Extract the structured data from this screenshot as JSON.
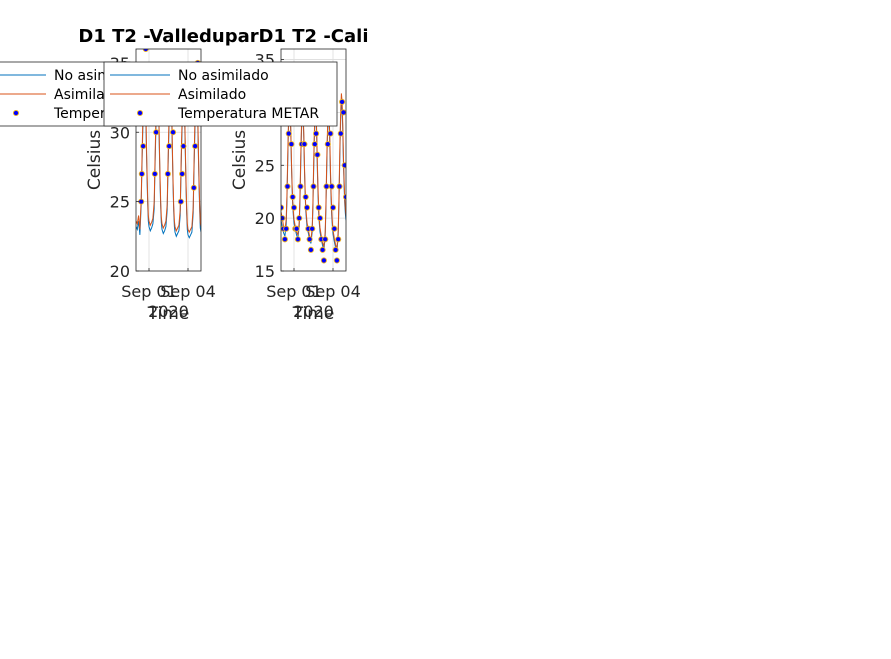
{
  "colors": {
    "no_asimilado": "#0072BD",
    "asimilado": "#D95319",
    "metar_face": "#0000FF",
    "metar_edge": "#EDB120",
    "grid": "#DCDCDC",
    "axis": "#262626"
  },
  "chart_data": [
    {
      "type": "line",
      "title": "D1 T2  -Valledupar",
      "xlabel": "Time",
      "ylabel": "Celsius",
      "date_label": "2020",
      "x_ticklabels": [
        "Sep 01",
        "Sep 04"
      ],
      "x_tick_days": [
        1,
        4
      ],
      "xlim_days": [
        0,
        5
      ],
      "ylim": [
        20,
        36
      ],
      "yticks": [
        20,
        25,
        30,
        35
      ],
      "grid": true,
      "legend": {
        "position": "top-left",
        "entries": [
          "No asimilado",
          "Asimilado",
          "Temperatura METAR"
        ]
      },
      "series": [
        {
          "name": "No asimilado",
          "style": "line",
          "x": [
            0.0,
            0.1,
            0.2,
            0.3,
            0.4,
            0.45,
            0.5,
            0.55,
            0.6,
            0.65,
            0.7,
            0.75,
            0.8,
            0.85,
            0.9,
            0.95,
            1.0,
            1.1,
            1.2,
            1.3,
            1.4,
            1.45,
            1.5,
            1.55,
            1.6,
            1.65,
            1.7,
            1.75,
            1.8,
            1.85,
            1.9,
            1.95,
            2.0,
            2.1,
            2.2,
            2.3,
            2.4,
            2.45,
            2.5,
            2.55,
            2.6,
            2.65,
            2.7,
            2.75,
            2.8,
            2.85,
            2.9,
            2.95,
            3.0,
            3.1,
            3.2,
            3.3,
            3.4,
            3.45,
            3.5,
            3.55,
            3.6,
            3.65,
            3.7,
            3.75,
            3.8,
            3.85,
            3.9,
            3.95,
            4.0,
            4.1,
            4.2,
            4.3,
            4.4,
            4.45,
            4.5,
            4.55,
            4.6,
            4.65,
            4.7,
            4.75,
            4.8,
            4.85,
            4.9,
            4.95,
            5.0
          ],
          "y": [
            23.2,
            23.0,
            23.6,
            22.6,
            24.8,
            27.0,
            29.2,
            31.4,
            33.2,
            33.8,
            33.0,
            31.2,
            28.8,
            26.5,
            24.8,
            23.6,
            23.2,
            22.9,
            23.1,
            23.4,
            24.5,
            26.8,
            29.0,
            31.2,
            32.8,
            33.4,
            33.0,
            31.0,
            28.6,
            26.2,
            24.6,
            23.5,
            23.0,
            22.7,
            22.9,
            23.2,
            24.4,
            26.6,
            28.8,
            31.0,
            32.6,
            33.1,
            32.6,
            30.8,
            28.4,
            26.0,
            24.3,
            23.2,
            22.8,
            22.5,
            22.7,
            22.9,
            24.0,
            26.3,
            28.6,
            30.6,
            32.2,
            32.8,
            32.2,
            30.4,
            28.2,
            25.8,
            24.1,
            23.0,
            22.6,
            22.4,
            22.6,
            22.8,
            24.2,
            26.6,
            28.8,
            30.8,
            32.4,
            33.0,
            32.5,
            30.6,
            28.3,
            26.0,
            24.3,
            23.1,
            22.8
          ]
        },
        {
          "name": "Asimilado",
          "style": "line",
          "x": [
            0.0,
            0.1,
            0.2,
            0.3,
            0.4,
            0.45,
            0.5,
            0.55,
            0.6,
            0.65,
            0.7,
            0.75,
            0.8,
            0.85,
            0.9,
            0.95,
            1.0,
            1.1,
            1.2,
            1.3,
            1.4,
            1.45,
            1.5,
            1.55,
            1.6,
            1.65,
            1.7,
            1.75,
            1.8,
            1.85,
            1.9,
            1.95,
            2.0,
            2.1,
            2.2,
            2.3,
            2.4,
            2.45,
            2.5,
            2.55,
            2.6,
            2.65,
            2.7,
            2.75,
            2.8,
            2.85,
            2.9,
            2.95,
            3.0,
            3.1,
            3.2,
            3.3,
            3.4,
            3.45,
            3.5,
            3.55,
            3.6,
            3.65,
            3.7,
            3.75,
            3.8,
            3.85,
            3.9,
            3.95,
            4.0,
            4.1,
            4.2,
            4.3,
            4.4,
            4.45,
            4.5,
            4.55,
            4.6,
            4.65,
            4.7,
            4.75,
            4.8,
            4.85,
            4.9,
            4.95,
            5.0
          ],
          "y": [
            23.6,
            23.4,
            24.0,
            23.0,
            25.2,
            27.4,
            29.8,
            32.0,
            34.0,
            35.0,
            34.2,
            32.0,
            29.4,
            27.0,
            25.2,
            24.0,
            23.6,
            23.3,
            23.5,
            23.8,
            25.0,
            27.2,
            29.6,
            31.8,
            33.6,
            34.4,
            33.8,
            31.6,
            29.0,
            26.6,
            25.0,
            23.9,
            23.4,
            23.1,
            23.3,
            23.6,
            24.8,
            27.0,
            29.4,
            31.6,
            33.4,
            34.0,
            33.4,
            31.4,
            28.8,
            26.4,
            24.7,
            23.6,
            23.2,
            22.9,
            23.1,
            23.3,
            24.4,
            26.7,
            29.2,
            31.2,
            33.0,
            33.6,
            33.0,
            31.0,
            28.6,
            26.2,
            24.5,
            23.4,
            23.0,
            22.8,
            23.0,
            23.2,
            24.6,
            27.0,
            29.4,
            31.4,
            33.2,
            33.8,
            33.2,
            31.2,
            28.8,
            26.4,
            24.7,
            23.5,
            23.2
          ]
        },
        {
          "name": "Temperatura METAR",
          "style": "markers",
          "x": [
            0.4,
            0.45,
            0.55,
            0.65,
            0.75,
            0.85,
            1.45,
            1.55,
            1.65,
            1.75,
            2.45,
            2.55,
            2.65,
            2.75,
            2.85,
            3.45,
            3.55,
            3.65,
            3.75,
            3.85,
            4.45,
            4.55,
            4.65,
            4.75,
            4.85
          ],
          "y": [
            25,
            27,
            29,
            33,
            36,
            31,
            27,
            30,
            33,
            32,
            27,
            29,
            31,
            34,
            30,
            25,
            27,
            29,
            33,
            31,
            26,
            29,
            32,
            35,
            31
          ]
        }
      ]
    },
    {
      "type": "line",
      "title": "D1 T2  -Cali",
      "xlabel": "Time",
      "ylabel": "Celsius",
      "date_label": "2020",
      "x_ticklabels": [
        "Sep 01",
        "Sep 04"
      ],
      "x_tick_days": [
        1,
        4
      ],
      "xlim_days": [
        0,
        5
      ],
      "ylim": [
        15,
        36
      ],
      "yticks": [
        15,
        20,
        25,
        30,
        35
      ],
      "grid": true,
      "legend": {
        "position": "top-left",
        "entries": [
          "No asimilado",
          "Asimilado",
          "Temperatura METAR"
        ]
      },
      "series": [
        {
          "name": "No asimilado",
          "style": "line",
          "x": [
            0.0,
            0.1,
            0.2,
            0.3,
            0.4,
            0.45,
            0.5,
            0.55,
            0.6,
            0.65,
            0.7,
            0.75,
            0.8,
            0.85,
            0.9,
            0.95,
            1.0,
            1.1,
            1.2,
            1.3,
            1.4,
            1.45,
            1.5,
            1.55,
            1.6,
            1.65,
            1.7,
            1.75,
            1.8,
            1.85,
            1.9,
            1.95,
            2.0,
            2.1,
            2.2,
            2.3,
            2.4,
            2.45,
            2.5,
            2.55,
            2.6,
            2.65,
            2.7,
            2.75,
            2.8,
            2.85,
            2.9,
            2.95,
            3.0,
            3.1,
            3.2,
            3.3,
            3.4,
            3.45,
            3.5,
            3.55,
            3.6,
            3.65,
            3.7,
            3.75,
            3.8,
            3.85,
            3.9,
            3.95,
            4.0,
            4.1,
            4.2,
            4.3,
            4.4,
            4.45,
            4.5,
            4.55,
            4.6,
            4.65,
            4.7,
            4.75,
            4.8,
            4.85,
            4.9,
            4.95,
            5.0
          ],
          "y": [
            19.8,
            19.2,
            18.6,
            18.3,
            19.4,
            21.6,
            24.2,
            27.0,
            29.6,
            31.0,
            30.2,
            28.0,
            25.2,
            22.8,
            21.2,
            20.2,
            19.5,
            18.9,
            18.4,
            18.1,
            19.2,
            21.4,
            24.0,
            26.8,
            29.2,
            30.4,
            29.6,
            27.6,
            24.8,
            22.4,
            20.8,
            19.9,
            19.2,
            18.6,
            18.0,
            17.6,
            18.7,
            21.0,
            23.8,
            26.6,
            29.0,
            30.2,
            29.4,
            27.2,
            24.4,
            22.0,
            20.4,
            19.4,
            18.7,
            18.0,
            17.4,
            17.0,
            18.3,
            20.8,
            23.6,
            26.4,
            28.8,
            30.0,
            29.2,
            27.0,
            24.2,
            21.8,
            20.2,
            19.2,
            18.5,
            17.8,
            17.2,
            16.8,
            18.4,
            21.2,
            24.2,
            27.2,
            29.8,
            31.2,
            30.4,
            28.2,
            25.4,
            23.0,
            21.4,
            20.4,
            19.8
          ]
        },
        {
          "name": "Asimilado",
          "style": "line",
          "x": [
            0.0,
            0.1,
            0.2,
            0.3,
            0.4,
            0.45,
            0.5,
            0.55,
            0.6,
            0.65,
            0.7,
            0.75,
            0.8,
            0.85,
            0.9,
            0.95,
            1.0,
            1.1,
            1.2,
            1.3,
            1.4,
            1.45,
            1.5,
            1.55,
            1.6,
            1.65,
            1.7,
            1.75,
            1.8,
            1.85,
            1.9,
            1.95,
            2.0,
            2.1,
            2.2,
            2.3,
            2.4,
            2.45,
            2.5,
            2.55,
            2.6,
            2.65,
            2.7,
            2.75,
            2.8,
            2.85,
            2.9,
            2.95,
            3.0,
            3.1,
            3.2,
            3.3,
            3.4,
            3.45,
            3.5,
            3.55,
            3.6,
            3.65,
            3.7,
            3.75,
            3.8,
            3.85,
            3.9,
            3.95,
            4.0,
            4.1,
            4.2,
            4.3,
            4.4,
            4.45,
            4.5,
            4.55,
            4.6,
            4.65,
            4.7,
            4.75,
            4.8,
            4.85,
            4.9,
            4.95,
            5.0
          ],
          "y": [
            20.6,
            20.0,
            19.2,
            18.8,
            19.9,
            22.0,
            24.8,
            27.6,
            30.2,
            31.4,
            30.6,
            28.4,
            25.6,
            23.2,
            21.6,
            20.6,
            19.9,
            19.2,
            18.7,
            18.4,
            19.6,
            21.8,
            24.6,
            27.4,
            29.8,
            31.0,
            30.2,
            28.0,
            25.2,
            22.8,
            21.2,
            20.3,
            19.6,
            18.9,
            18.3,
            17.9,
            19.1,
            21.4,
            24.4,
            27.2,
            29.6,
            30.8,
            30.0,
            27.8,
            25.0,
            22.6,
            20.9,
            19.8,
            19.1,
            18.3,
            17.7,
            17.3,
            18.7,
            21.2,
            24.2,
            27.0,
            29.4,
            30.6,
            29.8,
            27.6,
            24.8,
            22.4,
            20.7,
            19.6,
            18.9,
            18.1,
            17.5,
            17.1,
            18.8,
            21.6,
            24.8,
            27.8,
            30.4,
            31.8,
            31.0,
            28.8,
            26.0,
            23.6,
            21.9,
            20.8,
            20.2
          ]
        },
        {
          "name": "Temperatura METAR",
          "style": "markers",
          "x": [
            0.0,
            0.1,
            0.2,
            0.3,
            0.4,
            0.5,
            0.6,
            0.7,
            0.8,
            0.9,
            1.0,
            1.1,
            1.2,
            1.3,
            1.4,
            1.5,
            1.6,
            1.7,
            1.8,
            1.9,
            2.0,
            2.1,
            2.2,
            2.3,
            2.4,
            2.5,
            2.6,
            2.7,
            2.8,
            2.9,
            3.0,
            3.1,
            3.2,
            3.3,
            3.4,
            3.5,
            3.6,
            3.7,
            3.8,
            3.9,
            4.0,
            4.1,
            4.2,
            4.3,
            4.4,
            4.5,
            4.6,
            4.7,
            4.8,
            4.9,
            5.0
          ],
          "y": [
            21,
            20,
            19,
            18,
            19,
            23,
            28,
            29,
            27,
            22,
            21,
            19,
            19,
            18,
            20,
            23,
            27,
            29,
            27,
            22,
            21,
            19,
            18,
            17,
            19,
            23,
            27,
            28,
            26,
            21,
            20,
            18,
            17,
            16,
            18,
            23,
            27,
            30,
            28,
            23,
            21,
            19,
            17,
            16,
            18,
            23,
            28,
            31,
            30,
            25,
            22
          ]
        }
      ]
    }
  ]
}
